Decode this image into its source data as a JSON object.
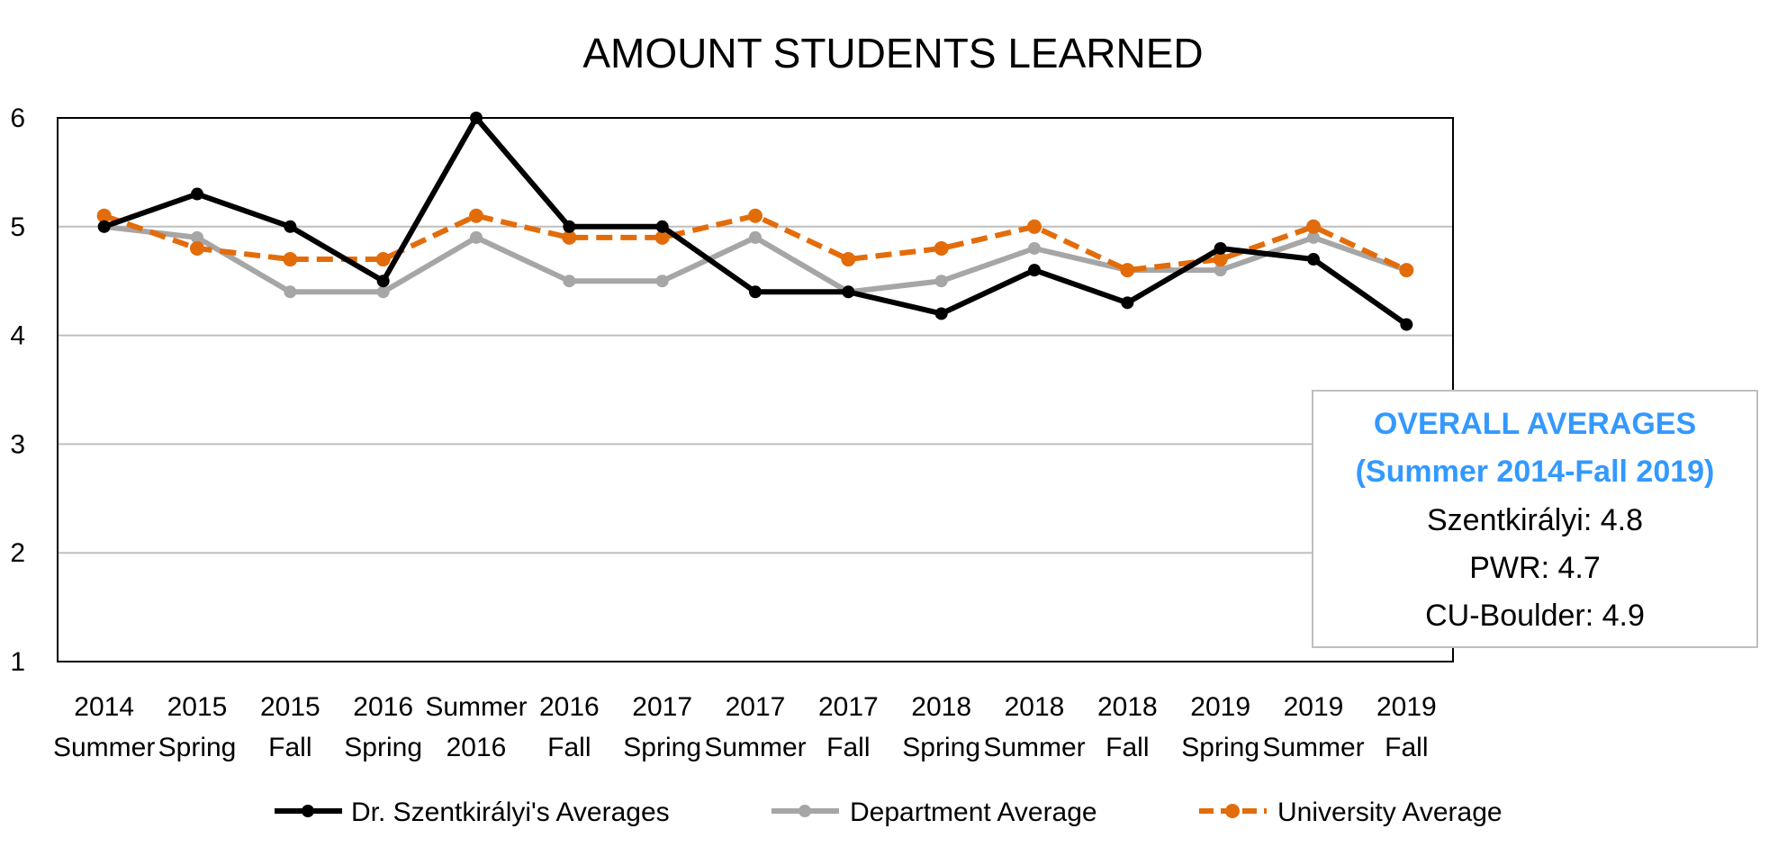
{
  "chart_data": {
    "type": "line",
    "title": "AMOUNT STUDENTS LEARNED",
    "xlabel": "",
    "ylabel": "",
    "ylim": [
      1,
      6
    ],
    "yticks": [
      "1",
      "2",
      "3",
      "4",
      "5",
      "6"
    ],
    "grid": true,
    "legend_position": "bottom",
    "categories": [
      [
        "2014",
        "Summer"
      ],
      [
        "2015",
        "Spring"
      ],
      [
        "2015",
        "Fall"
      ],
      [
        "2016",
        "Spring"
      ],
      [
        "Summer",
        "2016"
      ],
      [
        "2016",
        "Fall"
      ],
      [
        "2017",
        "Spring"
      ],
      [
        "2017",
        "Summer"
      ],
      [
        "2017",
        "Fall"
      ],
      [
        "2018",
        "Spring"
      ],
      [
        "2018",
        "Summer"
      ],
      [
        "2018",
        "Fall"
      ],
      [
        "2019",
        "Spring"
      ],
      [
        "2019",
        "Summer"
      ],
      [
        "2019",
        "Fall"
      ]
    ],
    "series": [
      {
        "name": "Dr. Szentkirályi's Averages",
        "color": "#000000",
        "style": "solid",
        "values": [
          5.0,
          5.3,
          5.0,
          4.5,
          6.0,
          5.0,
          5.0,
          4.4,
          4.4,
          4.2,
          4.6,
          4.3,
          4.8,
          4.7,
          4.1
        ]
      },
      {
        "name": "Department Average",
        "color": "#a6a6a6",
        "style": "solid",
        "values": [
          5.0,
          4.9,
          4.4,
          4.4,
          4.9,
          4.5,
          4.5,
          4.9,
          4.4,
          4.5,
          4.8,
          4.6,
          4.6,
          4.9,
          4.6
        ]
      },
      {
        "name": "University Average",
        "color": "#e36c0a",
        "style": "dashed",
        "values": [
          5.1,
          4.8,
          4.7,
          4.7,
          5.1,
          4.9,
          4.9,
          5.1,
          4.7,
          4.8,
          5.0,
          4.6,
          4.7,
          5.0,
          4.6
        ]
      }
    ],
    "annotation": {
      "heading_line1": "OVERALL AVERAGES",
      "heading_line2": "(Summer 2014-Fall 2019)",
      "heading_color": "#3399ff",
      "lines": [
        "Szentkirályi: 4.8",
        "PWR: 4.7",
        "CU-Boulder: 4.9"
      ]
    }
  }
}
